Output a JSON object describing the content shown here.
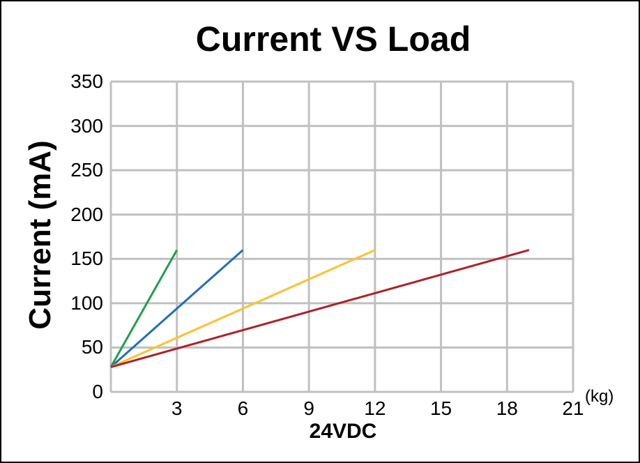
{
  "chart_data": {
    "type": "line",
    "title": "Current VS Load",
    "xlabel": "24VDC",
    "ylabel": "Current (mA)",
    "x_unit_label": "(kg)",
    "xlim": [
      0,
      21
    ],
    "ylim": [
      0,
      350
    ],
    "x_ticks": [
      3,
      6,
      9,
      12,
      15,
      18,
      21
    ],
    "y_ticks": [
      0,
      50,
      100,
      150,
      200,
      250,
      300,
      350
    ],
    "grid": true,
    "grid_color": "#C0C0C0",
    "legend_position": "none",
    "series": [
      {
        "name": "green",
        "color": "#229E4C",
        "points": [
          [
            0,
            28
          ],
          [
            3,
            160
          ]
        ]
      },
      {
        "name": "blue",
        "color": "#1F6FB4",
        "points": [
          [
            0,
            28
          ],
          [
            6,
            160
          ]
        ]
      },
      {
        "name": "yellow",
        "color": "#FCC230",
        "points": [
          [
            0,
            28
          ],
          [
            12,
            160
          ]
        ]
      },
      {
        "name": "red",
        "color": "#B02026",
        "points": [
          [
            0,
            28
          ],
          [
            19,
            160
          ]
        ]
      }
    ]
  }
}
